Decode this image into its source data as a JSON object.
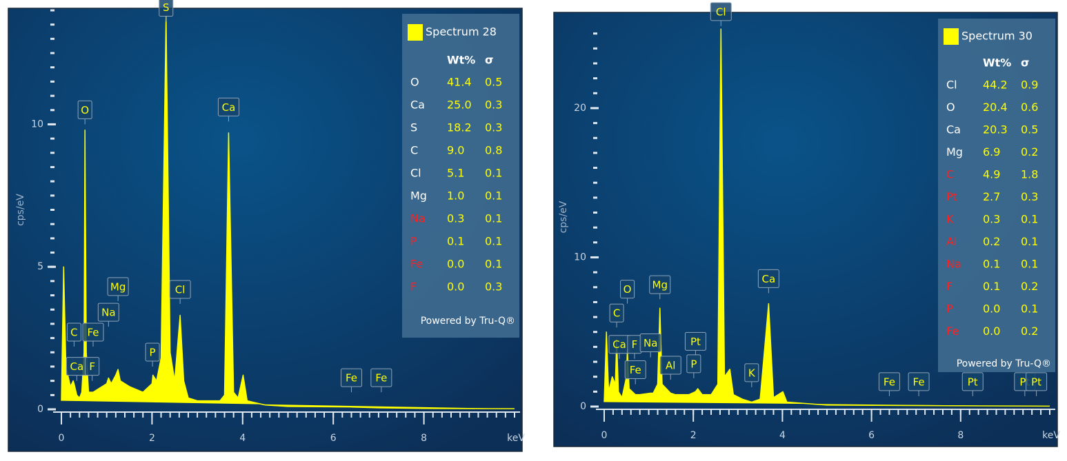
{
  "chart_data": [
    {
      "type": "spectrum",
      "xlabel": "keV",
      "ylabel": "cps/eV",
      "xlim": [
        0,
        10
      ],
      "xticks": [
        0,
        2,
        4,
        6,
        8
      ],
      "x_minor_step": 0.2,
      "ylim": [
        0,
        14
      ],
      "yticks": [
        0,
        5,
        10
      ],
      "y_minor_step": 0.5,
      "series": [
        {
          "name": "Spectrum 28",
          "color": "#ffff00",
          "x": [
            0,
            0.05,
            0.1,
            0.2,
            0.26,
            0.28,
            0.34,
            0.4,
            0.45,
            0.5,
            0.52,
            0.55,
            0.6,
            0.7,
            0.8,
            1.0,
            1.04,
            1.1,
            1.2,
            1.25,
            1.3,
            1.5,
            1.8,
            2.0,
            2.02,
            2.1,
            2.2,
            2.31,
            2.4,
            2.5,
            2.62,
            2.7,
            2.8,
            3.0,
            3.5,
            3.6,
            3.69,
            3.8,
            3.9,
            4.01,
            4.1,
            4.5,
            5,
            6.4,
            7,
            8,
            10
          ],
          "values": [
            0.3,
            5,
            1.5,
            0.8,
            1.0,
            0.9,
            0.5,
            0.4,
            0.6,
            2,
            9.8,
            2,
            0.6,
            0.6,
            0.7,
            0.9,
            1.1,
            0.9,
            1.2,
            1.4,
            1.0,
            0.8,
            0.6,
            0.9,
            1.2,
            1.0,
            1.8,
            13.8,
            2.0,
            1.0,
            3.3,
            1.0,
            0.4,
            0.3,
            0.3,
            0.5,
            9.7,
            0.6,
            0.4,
            1.2,
            0.3,
            0.15,
            0.1,
            0.08,
            0.05,
            0.03,
            0.02
          ]
        }
      ],
      "peaks": [
        {
          "label": "O",
          "x": 0.52,
          "y": 10.0
        },
        {
          "label": "C",
          "x": 0.28,
          "y": 2.2
        },
        {
          "label": "Ca",
          "x": 0.34,
          "y": 1.0
        },
        {
          "label": "Fe",
          "x": 0.7,
          "y": 2.2
        },
        {
          "label": "F",
          "x": 0.68,
          "y": 1.0
        },
        {
          "label": "Na",
          "x": 1.04,
          "y": 2.9
        },
        {
          "label": "Mg",
          "x": 1.25,
          "y": 3.8
        },
        {
          "label": "P",
          "x": 2.01,
          "y": 1.5
        },
        {
          "label": "S",
          "x": 2.31,
          "y": 13.6
        },
        {
          "label": "Cl",
          "x": 2.62,
          "y": 3.7
        },
        {
          "label": "Ca",
          "x": 3.69,
          "y": 10.1
        },
        {
          "label": "Fe",
          "x": 6.4,
          "y": 0.6
        },
        {
          "label": "Fe",
          "x": 7.06,
          "y": 0.6
        }
      ],
      "table": {
        "columns": [
          "Wt%",
          "σ"
        ],
        "footer": "Powered by Tru-Q®",
        "rows": [
          {
            "element": "O",
            "color": "#ffffff",
            "values": [
              41.4,
              0.5
            ]
          },
          {
            "element": "Ca",
            "color": "#ffffff",
            "values": [
              25.0,
              0.3
            ],
            "value_labels": [
              "25.0",
              "0.3"
            ]
          },
          {
            "element": "S",
            "color": "#ffffff",
            "values": [
              18.2,
              0.3
            ]
          },
          {
            "element": "C",
            "color": "#ffffff",
            "values": [
              9.0,
              0.8
            ],
            "value_labels": [
              "9.0",
              "0.8"
            ]
          },
          {
            "element": "Cl",
            "color": "#ffffff",
            "values": [
              5.1,
              0.1
            ]
          },
          {
            "element": "Mg",
            "color": "#ffffff",
            "values": [
              1.0,
              0.1
            ],
            "value_labels": [
              "1.0",
              "0.1"
            ]
          },
          {
            "element": "Na",
            "color": "#ff2020",
            "values": [
              0.3,
              0.1
            ]
          },
          {
            "element": "P",
            "color": "#ff2020",
            "values": [
              0.1,
              0.1
            ]
          },
          {
            "element": "Fe",
            "color": "#ff2020",
            "values": [
              0.0,
              0.1
            ],
            "value_labels": [
              "0.0",
              "0.1"
            ]
          },
          {
            "element": "F",
            "color": "#ff2020",
            "values": [
              0.0,
              0.3
            ],
            "value_labels": [
              "0.0",
              "0.3"
            ]
          }
        ]
      }
    },
    {
      "type": "spectrum",
      "xlabel": "keV",
      "ylabel": "cps/eV",
      "xlim": [
        0,
        10
      ],
      "xticks": [
        0,
        2,
        4,
        6,
        8
      ],
      "x_minor_step": 0.2,
      "ylim": [
        0,
        25.4
      ],
      "yticks": [
        0,
        10,
        20
      ],
      "y_minor_step": 1,
      "series": [
        {
          "name": "Spectrum 30",
          "color": "#ffff00",
          "x": [
            0,
            0.05,
            0.1,
            0.18,
            0.25,
            0.28,
            0.32,
            0.4,
            0.5,
            0.52,
            0.56,
            0.7,
            0.8,
            1.04,
            1.1,
            1.2,
            1.25,
            1.3,
            1.49,
            1.6,
            1.9,
            2.05,
            2.1,
            2.2,
            2.4,
            2.55,
            2.62,
            2.7,
            2.82,
            2.9,
            3.1,
            3.31,
            3.5,
            3.69,
            3.8,
            4.01,
            4.1,
            5,
            8,
            10
          ],
          "values": [
            0.3,
            5,
            1,
            2,
            1.5,
            4.5,
            1,
            0.6,
            2,
            3.8,
            1.2,
            0.8,
            0.8,
            0.9,
            0.9,
            1.5,
            6.6,
            1.5,
            0.9,
            0.8,
            0.8,
            1.0,
            1.2,
            0.8,
            0.8,
            1.5,
            25.3,
            2,
            2.5,
            0.8,
            0.5,
            0.3,
            0.5,
            6.9,
            0.6,
            1.0,
            0.3,
            0.1,
            0.05,
            0.03
          ]
        }
      ],
      "peaks": [
        {
          "label": "C",
          "x": 0.28,
          "y": 5.3
        },
        {
          "label": "O",
          "x": 0.52,
          "y": 6.9
        },
        {
          "label": "Ca",
          "x": 0.34,
          "y": 3.2
        },
        {
          "label": "F",
          "x": 0.68,
          "y": 3.2
        },
        {
          "label": "Fe",
          "x": 0.7,
          "y": 1.5
        },
        {
          "label": "Na",
          "x": 1.04,
          "y": 3.3
        },
        {
          "label": "Mg",
          "x": 1.25,
          "y": 7.2
        },
        {
          "label": "Al",
          "x": 1.49,
          "y": 1.8
        },
        {
          "label": "Pt",
          "x": 2.05,
          "y": 3.4
        },
        {
          "label": "P",
          "x": 2.01,
          "y": 1.9
        },
        {
          "label": "Cl",
          "x": 2.62,
          "y": 25.5
        },
        {
          "label": "K",
          "x": 3.31,
          "y": 1.3
        },
        {
          "label": "Ca",
          "x": 3.69,
          "y": 7.6
        },
        {
          "label": "Fe",
          "x": 6.4,
          "y": 0.7
        },
        {
          "label": "Fe",
          "x": 7.06,
          "y": 0.7
        },
        {
          "label": "Pt",
          "x": 8.27,
          "y": 0.7
        },
        {
          "label": "Pt",
          "x": 9.44,
          "y": 0.7
        },
        {
          "label": "Pt",
          "x": 9.7,
          "y": 0.7
        }
      ],
      "table": {
        "columns": [
          "Wt%",
          "σ"
        ],
        "footer": "Powered by Tru-Q®",
        "rows": [
          {
            "element": "Cl",
            "color": "#ffffff",
            "values": [
              44.2,
              0.9
            ]
          },
          {
            "element": "O",
            "color": "#ffffff",
            "values": [
              20.4,
              0.6
            ]
          },
          {
            "element": "Ca",
            "color": "#ffffff",
            "values": [
              20.3,
              0.5
            ]
          },
          {
            "element": "Mg",
            "color": "#ffffff",
            "values": [
              6.9,
              0.2
            ]
          },
          {
            "element": "C",
            "color": "#ff2020",
            "values": [
              4.9,
              1.8
            ]
          },
          {
            "element": "Pt",
            "color": "#ff2020",
            "values": [
              2.7,
              0.3
            ]
          },
          {
            "element": "K",
            "color": "#ff2020",
            "values": [
              0.3,
              0.1
            ]
          },
          {
            "element": "Al",
            "color": "#ff2020",
            "values": [
              0.2,
              0.1
            ]
          },
          {
            "element": "Na",
            "color": "#ff2020",
            "values": [
              0.1,
              0.1
            ]
          },
          {
            "element": "F",
            "color": "#ff2020",
            "values": [
              0.1,
              0.2
            ]
          },
          {
            "element": "P",
            "color": "#ff2020",
            "values": [
              0.0,
              0.1
            ],
            "value_labels": [
              "0.0",
              "0.1"
            ]
          },
          {
            "element": "Fe",
            "color": "#ff2020",
            "values": [
              0.0,
              0.2
            ],
            "value_labels": [
              "0.0",
              "0.2"
            ]
          }
        ]
      }
    }
  ]
}
